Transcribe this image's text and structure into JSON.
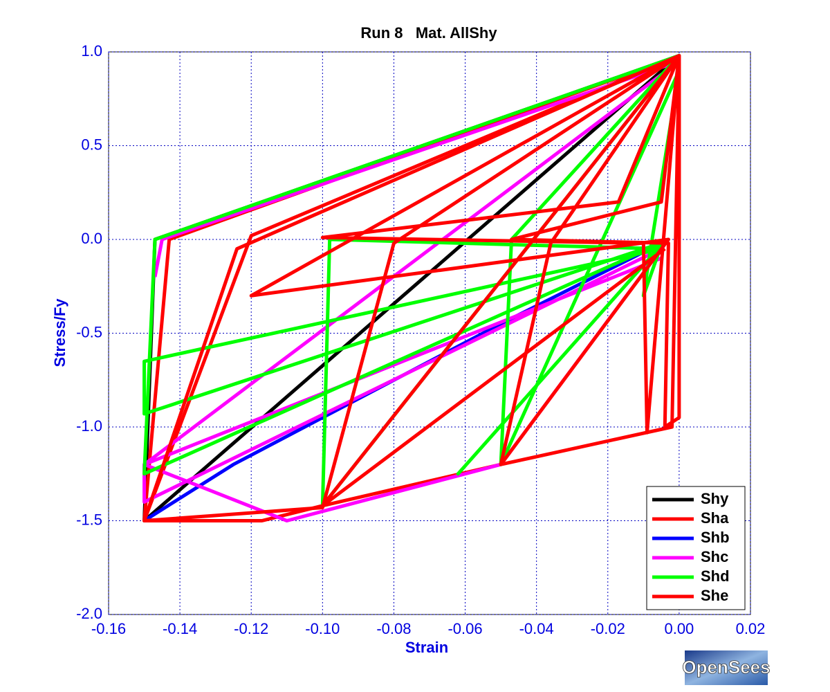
{
  "chart_data": {
    "type": "line",
    "title": "Run 8   Mat. AllShy",
    "x_label": "Strain",
    "y_label": "Stress/Fy",
    "logo": "OpenSees",
    "xlim": [
      -0.16,
      0.02
    ],
    "ylim": [
      -2,
      1
    ],
    "xticks": [
      -0.16,
      -0.14,
      -0.12,
      {
        "value": -0.1,
        "label": "-0.10"
      },
      -0.08,
      -0.06,
      -0.04,
      -0.02,
      {
        "value": 0,
        "label": "0.00"
      },
      0.02
    ],
    "yticks": [
      {
        "value": -2,
        "label": "-2.0"
      },
      -1.5,
      {
        "value": -1,
        "label": "-1.0"
      },
      -0.5,
      {
        "value": 0,
        "label": "0.0"
      },
      0.5,
      {
        "value": 1,
        "label": "1.0"
      }
    ],
    "grid": true,
    "legend": "lower right",
    "series": [
      {
        "name": "Shy",
        "color": "#000000",
        "x": [
          0,
          -0.147,
          -0.15,
          0
        ],
        "values": [
          0.98,
          0,
          -1.5,
          0.98
        ]
      },
      {
        "name": "Sha",
        "color": "#ff0000",
        "x": [
          0,
          0,
          -0.143,
          -0.15,
          -0.117,
          -0.1,
          -0.05,
          -0.002,
          0,
          -0.12,
          -0.15
        ],
        "values": [
          0,
          0.98,
          0,
          -1.5,
          -1.5,
          -1.42,
          -1.2,
          -1.0,
          0.98,
          0.02,
          -1.5
        ]
      },
      {
        "name": "Shb",
        "color": "#0000ff",
        "x": [
          -0.15,
          -0.125,
          -0.1,
          -0.05,
          -0.005
        ],
        "values": [
          -1.5,
          -1.2,
          -0.95,
          -0.45,
          -0.02
        ]
      },
      {
        "name": "Shc",
        "color": "#ff00ff",
        "x": [
          -0.147,
          -0.145,
          0,
          -0.15,
          -0.11,
          -0.05,
          -0.005,
          -0.15,
          -0.15,
          -0.005
        ],
        "values": [
          -0.2,
          0,
          0.95,
          -1.2,
          -1.5,
          -1.2,
          -0.05,
          -1.4,
          -1.2,
          -0.1
        ]
      },
      {
        "name": "Shd",
        "color": "#00ff00",
        "x": [
          0,
          -0.147,
          -0.15,
          -0.005,
          -0.15,
          -0.15,
          -0.005,
          -0.098,
          -0.1,
          0,
          -0.047,
          -0.05,
          0,
          -0.008,
          -0.01,
          -0.005,
          -0.062,
          -0.005
        ],
        "values": [
          0.98,
          0,
          -1.25,
          -0.02,
          -0.93,
          -0.65,
          -0.05,
          0,
          -1.42,
          0.98,
          0,
          -1.2,
          0.9,
          -0.05,
          -0.3,
          -0.03,
          -1.25,
          -0.03
        ]
      },
      {
        "name": "She",
        "color": "#ff0000",
        "x": [
          0,
          -0.124,
          -0.15,
          -0.1,
          -0.08,
          0,
          -0.12,
          -0.003,
          -0.05,
          -0.036,
          0,
          -0.017,
          -0.1,
          -0.01,
          -0.009,
          0,
          -0.005,
          -0.047,
          -0.003,
          -0.004,
          0,
          0,
          -0.1,
          -0.004
        ],
        "values": [
          0.98,
          -0.05,
          -1.5,
          -1.43,
          -0.02,
          0.98,
          -0.3,
          0,
          -1.2,
          -0.02,
          0.98,
          0.2,
          0.01,
          -0.02,
          -1.03,
          0.98,
          0.2,
          0,
          -0.02,
          -1.0,
          -0.95,
          0.98,
          -1.42,
          -0.05
        ]
      }
    ]
  }
}
